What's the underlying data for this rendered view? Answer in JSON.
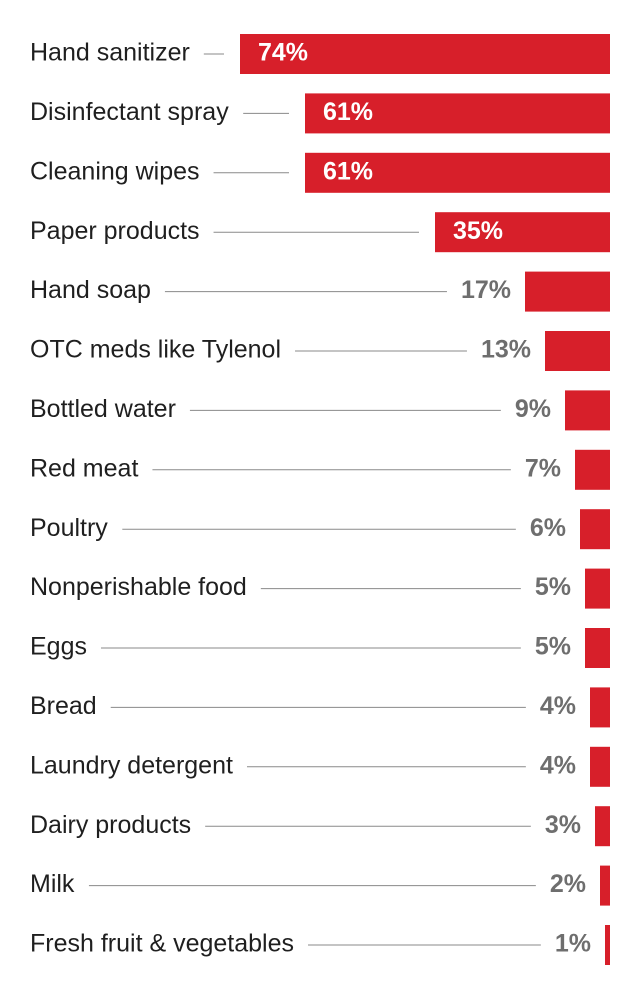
{
  "chart_data": {
    "type": "bar",
    "orientation": "horizontal",
    "categories": [
      "Hand sanitizer",
      "Disinfectant spray",
      "Cleaning wipes",
      "Paper products",
      "Hand soap",
      "OTC meds like Tylenol",
      "Bottled water",
      "Red meat",
      "Poultry",
      "Nonperishable food",
      "Eggs",
      "Bread",
      "Laundry detergent",
      "Dairy products",
      "Milk",
      "Fresh fruit & vegetables"
    ],
    "values": [
      74,
      61,
      61,
      35,
      17,
      13,
      9,
      7,
      6,
      5,
      5,
      4,
      4,
      3,
      2,
      1
    ],
    "value_labels": [
      "74%",
      "61%",
      "61%",
      "35%",
      "17%",
      "13%",
      "9%",
      "7%",
      "6%",
      "5%",
      "5%",
      "4%",
      "4%",
      "3%",
      "2%",
      "1%"
    ],
    "unit": "%",
    "bar_color": "#d71f2a",
    "label_inside_color": "#ffffff",
    "label_outside_color": "#6e6e6e",
    "leader_line_color": "#8a8a8a",
    "grid": false,
    "legend": "none"
  }
}
